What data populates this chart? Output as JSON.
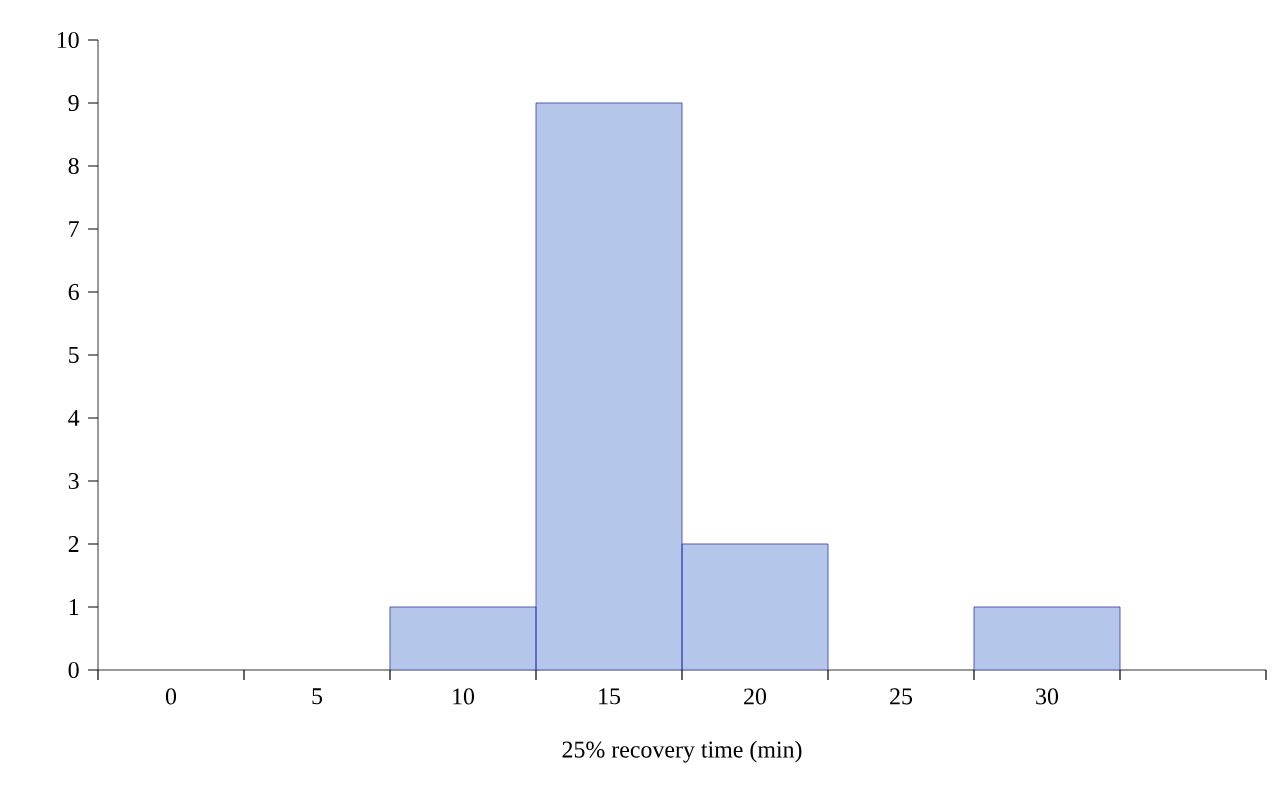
{
  "chart_data": {
    "type": "bar",
    "xlabel": "25% recovery time (min)",
    "categories": [
      "0",
      "5",
      "10",
      "15",
      "20",
      "25",
      "30",
      null
    ],
    "values": [
      0,
      0,
      1,
      9,
      2,
      0,
      1,
      0
    ],
    "color": "#b4c6ea",
    "grid": false,
    "ylim": [
      0,
      10
    ],
    "yticks": [
      0,
      1,
      2,
      3,
      4,
      5,
      6,
      7,
      8,
      9,
      10
    ]
  }
}
